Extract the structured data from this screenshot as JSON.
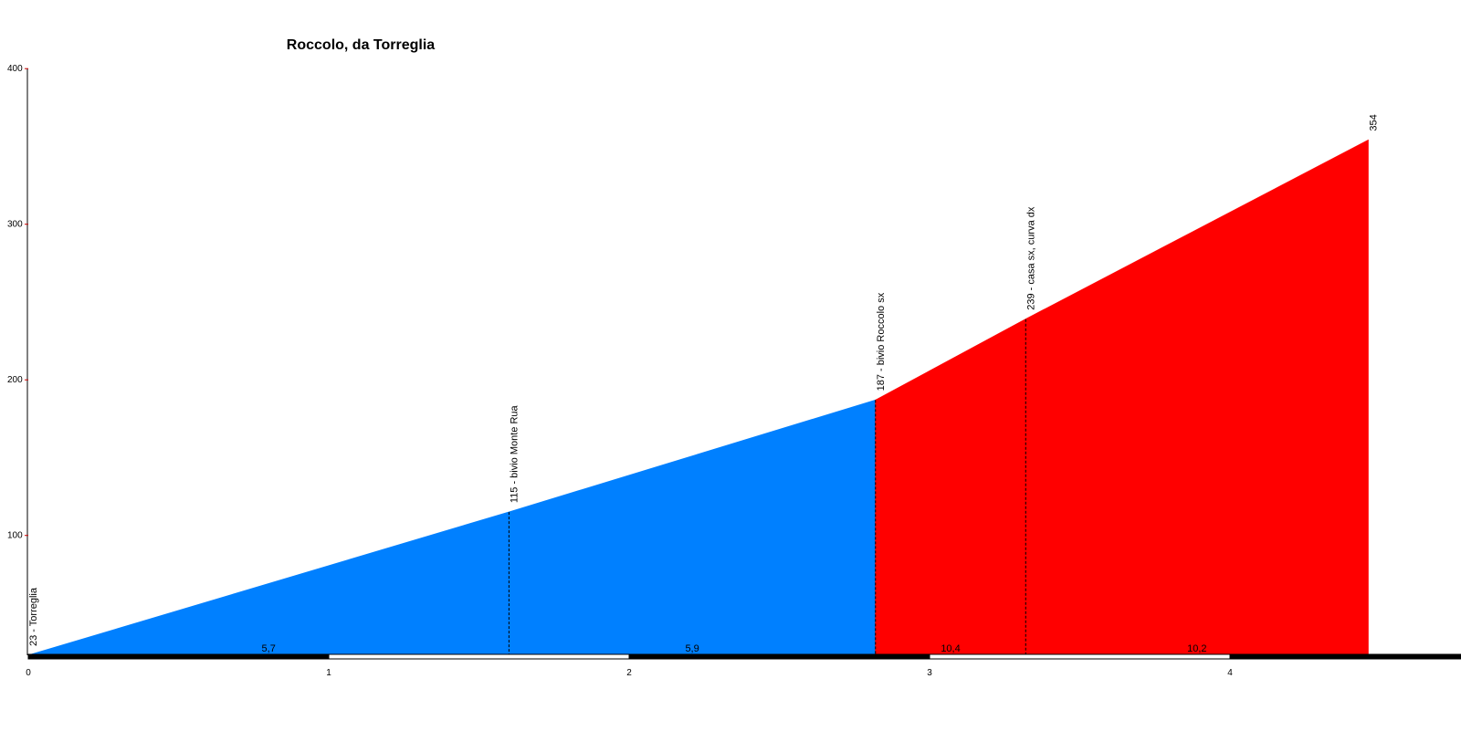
{
  "chart_data": {
    "type": "area",
    "title": "Roccolo, da Torreglia",
    "xlabel": "",
    "ylabel": "",
    "xlim": [
      0,
      4.68
    ],
    "ylim": [
      23,
      400
    ],
    "x_ticks": [
      0,
      1,
      2,
      3,
      4
    ],
    "y_ticks": [
      100,
      200,
      300,
      400
    ],
    "grid": false,
    "legend": "none",
    "colors": {
      "easy": "#0080ff",
      "hard": "#ff0000",
      "axis_bar": "#000000",
      "axis_bar_alt": "#ffffff"
    },
    "series": [
      {
        "name": "",
        "color": "#0080ff",
        "x": [
          0,
          1.6,
          2.82
        ],
        "y": [
          23,
          115,
          187
        ]
      },
      {
        "name": "",
        "color": "#ff0000",
        "x": [
          2.82,
          3.32,
          4.46
        ],
        "y": [
          187,
          239,
          354
        ]
      }
    ],
    "waypoints": [
      {
        "x": 0,
        "y": 23,
        "label": "23 - Torreglia",
        "dashed": false
      },
      {
        "x": 1.6,
        "y": 115,
        "label": "115 - bivio Monte Rua",
        "dashed": true
      },
      {
        "x": 2.82,
        "y": 187,
        "label": "187 - bivio Roccolo sx",
        "dashed": true
      },
      {
        "x": 3.32,
        "y": 239,
        "label": "239 - casa sx, curva dx",
        "dashed": true
      },
      {
        "x": 4.46,
        "y": 354,
        "label": "354",
        "dashed": false
      }
    ],
    "gradients": [
      {
        "x": 0.8,
        "label": "5,7"
      },
      {
        "x": 2.21,
        "label": "5,9"
      },
      {
        "x": 3.07,
        "label": "10,4"
      },
      {
        "x": 3.89,
        "label": "10,2"
      }
    ]
  }
}
